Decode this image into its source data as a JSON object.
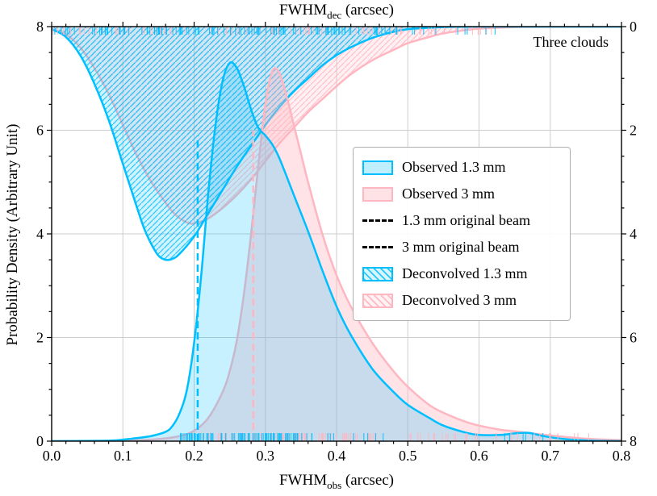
{
  "chart_data": {
    "type": "line",
    "title_top": {
      "pre": "FWHM",
      "sub": "dec",
      "post": " (arcsec)"
    },
    "xlabel": {
      "pre": "FWHM",
      "sub": "obs",
      "post": " (arcsec)"
    },
    "ylabel": "Probability Density (Arbitrary Unit)",
    "annotation": "Three clouds",
    "xlim": [
      0,
      0.8
    ],
    "ylim_left": [
      0,
      8
    ],
    "ylim_right_inverted": [
      0,
      8
    ],
    "grid": true,
    "colors": {
      "blue": "#00BFFF",
      "pink": "#FFB6C1"
    },
    "x_ticks": {
      "values": [
        0,
        0.1,
        0.2,
        0.3,
        0.4,
        0.5,
        0.6,
        0.7,
        0.8
      ],
      "labels": [
        "0.0",
        "0.1",
        "0.2",
        "0.3",
        "0.4",
        "0.5",
        "0.6",
        "0.7",
        "0.8"
      ]
    },
    "y_ticks_left": {
      "values": [
        0,
        2,
        4,
        6,
        8
      ],
      "labels": [
        "0",
        "2",
        "4",
        "6",
        "8"
      ]
    },
    "y_ticks_right": {
      "positions": [
        8,
        6,
        4,
        2,
        0
      ],
      "labels": [
        "0",
        "2",
        "4",
        "6",
        "8"
      ]
    },
    "series": [
      {
        "id": "deconvolved-3mm",
        "name": "Deconvolved 3 mm",
        "axis": "right",
        "color": "#FFB6C1",
        "fill_color": "rgba(255,182,193,0.20)",
        "hatch": "pink",
        "fill_from": "top",
        "points": [
          [
            0,
            0.05
          ],
          [
            0.02,
            0.15
          ],
          [
            0.04,
            0.4
          ],
          [
            0.06,
            0.8
          ],
          [
            0.08,
            1.3
          ],
          [
            0.1,
            1.9
          ],
          [
            0.12,
            2.5
          ],
          [
            0.14,
            3.0
          ],
          [
            0.16,
            3.4
          ],
          [
            0.17,
            3.58
          ],
          [
            0.18,
            3.7
          ],
          [
            0.19,
            3.78
          ],
          [
            0.2,
            3.8
          ],
          [
            0.22,
            3.7
          ],
          [
            0.24,
            3.5
          ],
          [
            0.26,
            3.25
          ],
          [
            0.28,
            2.95
          ],
          [
            0.3,
            2.6
          ],
          [
            0.32,
            2.25
          ],
          [
            0.34,
            1.95
          ],
          [
            0.36,
            1.65
          ],
          [
            0.38,
            1.4
          ],
          [
            0.4,
            1.15
          ],
          [
            0.42,
            0.92
          ],
          [
            0.45,
            0.65
          ],
          [
            0.48,
            0.45
          ],
          [
            0.5,
            0.32
          ],
          [
            0.53,
            0.2
          ],
          [
            0.55,
            0.13
          ],
          [
            0.58,
            0.07
          ],
          [
            0.6,
            0.04
          ],
          [
            0.65,
            0.01
          ],
          [
            0.7,
            0
          ],
          [
            0.8,
            0
          ]
        ]
      },
      {
        "id": "deconvolved-1.3mm",
        "name": "Deconvolved 1.3 mm",
        "axis": "right",
        "color": "#00BFFF",
        "fill_color": "rgba(0,191,255,0.18)",
        "hatch": "blue",
        "fill_from": "top",
        "points": [
          [
            0,
            0.05
          ],
          [
            0.02,
            0.2
          ],
          [
            0.04,
            0.55
          ],
          [
            0.06,
            1.1
          ],
          [
            0.08,
            1.8
          ],
          [
            0.1,
            2.65
          ],
          [
            0.12,
            3.5
          ],
          [
            0.13,
            3.9
          ],
          [
            0.14,
            4.2
          ],
          [
            0.15,
            4.42
          ],
          [
            0.16,
            4.5
          ],
          [
            0.17,
            4.48
          ],
          [
            0.18,
            4.38
          ],
          [
            0.2,
            4.05
          ],
          [
            0.22,
            3.6
          ],
          [
            0.24,
            3.15
          ],
          [
            0.26,
            2.7
          ],
          [
            0.28,
            2.3
          ],
          [
            0.3,
            1.9
          ],
          [
            0.32,
            1.55
          ],
          [
            0.34,
            1.25
          ],
          [
            0.36,
            1.0
          ],
          [
            0.38,
            0.75
          ],
          [
            0.4,
            0.55
          ],
          [
            0.42,
            0.4
          ],
          [
            0.45,
            0.22
          ],
          [
            0.48,
            0.1
          ],
          [
            0.5,
            0.05
          ],
          [
            0.55,
            0.01
          ],
          [
            0.6,
            0
          ],
          [
            0.8,
            0
          ]
        ]
      },
      {
        "id": "observed-3mm",
        "name": "Observed 3 mm",
        "axis": "left",
        "color": "#FFB6C1",
        "fill_color": "rgba(255,182,193,0.38)",
        "hatch": null,
        "fill_from": "bottom",
        "points": [
          [
            0,
            0
          ],
          [
            0.1,
            0.01
          ],
          [
            0.15,
            0.04
          ],
          [
            0.18,
            0.1
          ],
          [
            0.2,
            0.2
          ],
          [
            0.22,
            0.45
          ],
          [
            0.24,
            0.95
          ],
          [
            0.25,
            1.35
          ],
          [
            0.26,
            1.95
          ],
          [
            0.27,
            2.85
          ],
          [
            0.28,
            4.0
          ],
          [
            0.29,
            5.3
          ],
          [
            0.3,
            6.5
          ],
          [
            0.31,
            7.15
          ],
          [
            0.32,
            7.1
          ],
          [
            0.33,
            6.65
          ],
          [
            0.34,
            6.1
          ],
          [
            0.35,
            5.55
          ],
          [
            0.36,
            5.0
          ],
          [
            0.38,
            4.0
          ],
          [
            0.4,
            3.2
          ],
          [
            0.42,
            2.6
          ],
          [
            0.45,
            1.9
          ],
          [
            0.48,
            1.35
          ],
          [
            0.5,
            1.05
          ],
          [
            0.53,
            0.7
          ],
          [
            0.55,
            0.55
          ],
          [
            0.58,
            0.38
          ],
          [
            0.6,
            0.3
          ],
          [
            0.63,
            0.22
          ],
          [
            0.65,
            0.19
          ],
          [
            0.68,
            0.14
          ],
          [
            0.7,
            0.11
          ],
          [
            0.73,
            0.07
          ],
          [
            0.76,
            0.04
          ],
          [
            0.8,
            0.02
          ]
        ]
      },
      {
        "id": "observed-1.3mm",
        "name": "Observed 1.3 mm",
        "axis": "left",
        "color": "#00BFFF",
        "fill_color": "rgba(0,191,255,0.22)",
        "hatch": null,
        "fill_from": "bottom",
        "points": [
          [
            0,
            0
          ],
          [
            0.08,
            0.01
          ],
          [
            0.1,
            0.03
          ],
          [
            0.12,
            0.06
          ],
          [
            0.14,
            0.1
          ],
          [
            0.16,
            0.18
          ],
          [
            0.17,
            0.3
          ],
          [
            0.18,
            0.55
          ],
          [
            0.19,
            1.0
          ],
          [
            0.2,
            1.9
          ],
          [
            0.21,
            3.2
          ],
          [
            0.22,
            4.8
          ],
          [
            0.23,
            6.1
          ],
          [
            0.24,
            6.95
          ],
          [
            0.25,
            7.3
          ],
          [
            0.26,
            7.2
          ],
          [
            0.27,
            6.85
          ],
          [
            0.28,
            6.4
          ],
          [
            0.29,
            6.05
          ],
          [
            0.3,
            5.9
          ],
          [
            0.31,
            5.72
          ],
          [
            0.32,
            5.45
          ],
          [
            0.34,
            4.75
          ],
          [
            0.36,
            4.05
          ],
          [
            0.38,
            3.3
          ],
          [
            0.4,
            2.6
          ],
          [
            0.42,
            2.05
          ],
          [
            0.45,
            1.4
          ],
          [
            0.48,
            0.95
          ],
          [
            0.5,
            0.7
          ],
          [
            0.53,
            0.45
          ],
          [
            0.55,
            0.3
          ],
          [
            0.58,
            0.17
          ],
          [
            0.6,
            0.12
          ],
          [
            0.63,
            0.12
          ],
          [
            0.65,
            0.15
          ],
          [
            0.67,
            0.16
          ],
          [
            0.69,
            0.1
          ],
          [
            0.72,
            0.04
          ],
          [
            0.76,
            0.01
          ],
          [
            0.8,
            0
          ]
        ]
      }
    ],
    "vlines": [
      {
        "id": "vline-1.3mm-beam",
        "label": "1.3 mm original beam",
        "x": 0.205,
        "y": [
          0,
          5.9
        ],
        "color": "#00BFFF",
        "width": 2.5,
        "dash": "9,5"
      },
      {
        "id": "vline-3mm-beam",
        "label": "3 mm original beam",
        "x": 0.283,
        "y": [
          0,
          6.0
        ],
        "color": "#FFB6C1",
        "width": 2.5,
        "dash": "9,5"
      }
    ],
    "legend": [
      {
        "label": "Observed 1.3 mm",
        "style": "fill-blue"
      },
      {
        "label": "Observed 3 mm",
        "style": "fill-pink"
      },
      {
        "label": "1.3 mm original beam",
        "style": "dash-blue"
      },
      {
        "label": "3 mm original beam",
        "style": "dash-pink"
      },
      {
        "label": "Deconvolved 1.3 mm",
        "style": "hatch-blue"
      },
      {
        "label": "Deconvolved 3 mm",
        "style": "hatch-pink"
      }
    ],
    "rugs": {
      "seed": 42,
      "length": 10,
      "top": [
        {
          "color": "#FFB6C1",
          "range": [
            0.0,
            0.52
          ],
          "count": 95
        },
        {
          "color": "#FFB6C1",
          "range": [
            0.52,
            0.62
          ],
          "count": 10
        },
        {
          "color": "#00BFFF",
          "range": [
            0.0,
            0.46
          ],
          "count": 110
        },
        {
          "color": "#00BFFF",
          "range": [
            0.46,
            0.63
          ],
          "count": 14
        }
      ],
      "bottom": [
        {
          "color": "#FFB6C1",
          "range": [
            0.22,
            0.46
          ],
          "count": 70
        },
        {
          "color": "#FFB6C1",
          "range": [
            0.46,
            0.6
          ],
          "count": 18
        },
        {
          "color": "#FFB6C1",
          "range": [
            0.6,
            0.76
          ],
          "count": 12
        },
        {
          "color": "#00BFFF",
          "range": [
            0.175,
            0.36
          ],
          "count": 90
        },
        {
          "color": "#00BFFF",
          "range": [
            0.36,
            0.47
          ],
          "count": 10
        },
        {
          "color": "#00BFFF",
          "range": [
            0.63,
            0.7
          ],
          "count": 7
        }
      ]
    }
  }
}
